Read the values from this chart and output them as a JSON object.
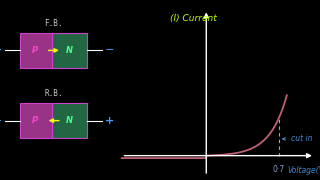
{
  "bg_color": "#000000",
  "axis_color": "#ffffff",
  "curve_color": "#c06070",
  "dotted_line_color": "#aaaaaa",
  "title_text": "(I) Current",
  "title_color": "#bbff00",
  "xlabel_text": "Voltage(V)",
  "xlabel_color": "#4488cc",
  "cutin_label": "cut in",
  "cutin_color": "#4488cc",
  "voltage_label": "0·7",
  "voltage_label_color": "#8899cc",
  "fb_label": "F.B.",
  "rb_label": "R.B.",
  "label_color": "#cccccc",
  "plus_color": "#4499ff",
  "minus_color": "#4499ff",
  "p_color": "#ff44cc",
  "n_color": "#44ff88",
  "arrow_color": "#ffff00",
  "box_p_color": "#993388",
  "box_n_color": "#226644",
  "box_border_color": "#cc44cc",
  "figsize": [
    3.2,
    1.8
  ],
  "dpi": 100
}
